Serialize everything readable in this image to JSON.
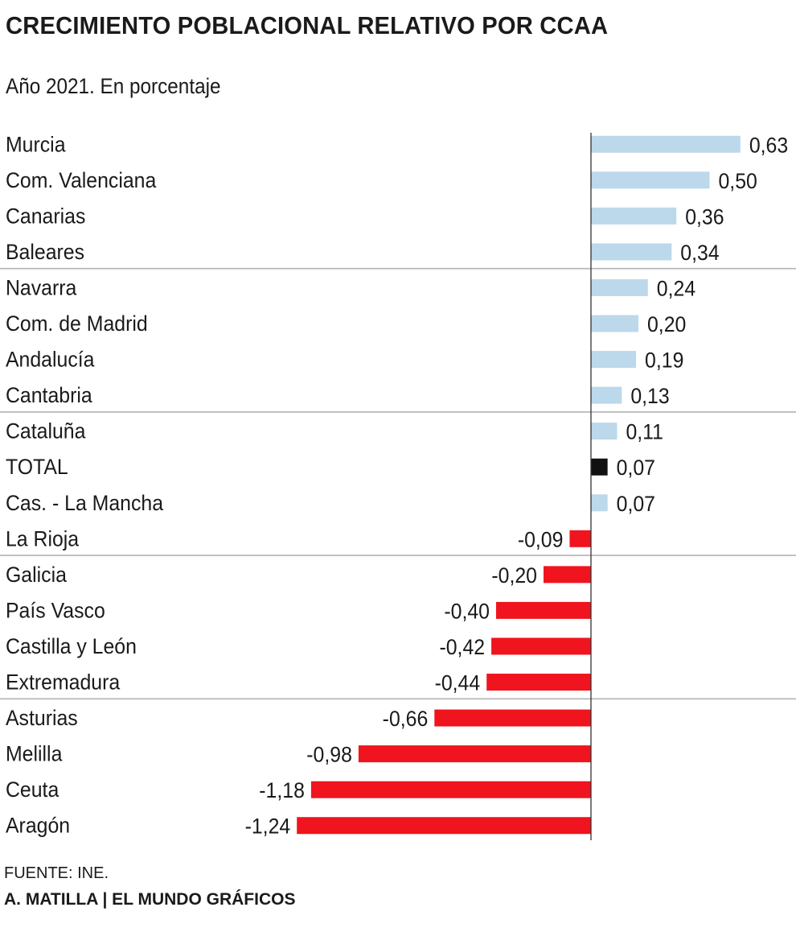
{
  "colors": {
    "positive": "#bcd8eb",
    "negative": "#f0141e",
    "total": "#111111",
    "axis": "#333333",
    "separator": "#b3b3b3",
    "text": "#1a1a1a"
  },
  "chart_data": {
    "type": "bar",
    "orientation": "horizontal",
    "title": "CRECIMIENTO POBLACIONAL RELATIVO POR CCAA",
    "subtitle": "Año 2021. En porcentaje",
    "categories": [
      "Murcia",
      "Com. Valenciana",
      "Canarias",
      "Baleares",
      "Navarra",
      "Com. de Madrid",
      "Andalucía",
      "Cantabria",
      "Cataluña",
      "TOTAL",
      "Cas. - La Mancha",
      "La Rioja",
      "Galicia",
      "País Vasco",
      "Castilla y León",
      "Extremadura",
      "Asturias",
      "Melilla",
      "Ceuta",
      "Aragón"
    ],
    "values": [
      0.63,
      0.5,
      0.36,
      0.34,
      0.24,
      0.2,
      0.19,
      0.13,
      0.11,
      0.07,
      0.07,
      -0.09,
      -0.2,
      -0.4,
      -0.42,
      -0.44,
      -0.66,
      -0.98,
      -1.18,
      -1.24
    ],
    "value_labels": [
      "0,63",
      "0,50",
      "0,36",
      "0,34",
      "0,24",
      "0,20",
      "0,19",
      "0,13",
      "0,11",
      "0,07",
      "0,07",
      "-0,09",
      "-0,20",
      "-0,40",
      "-0,42",
      "-0,44",
      "-0,66",
      "-0,98",
      "-1,18",
      "-1,24"
    ],
    "highlight_category": "TOTAL",
    "group_size": 4,
    "xlim": [
      -1.24,
      0.63
    ],
    "grid": false,
    "legend": "none"
  },
  "footer": {
    "source": "FUENTE: INE.",
    "credit": "A. MATILLA | EL MUNDO GRÁFICOS"
  }
}
